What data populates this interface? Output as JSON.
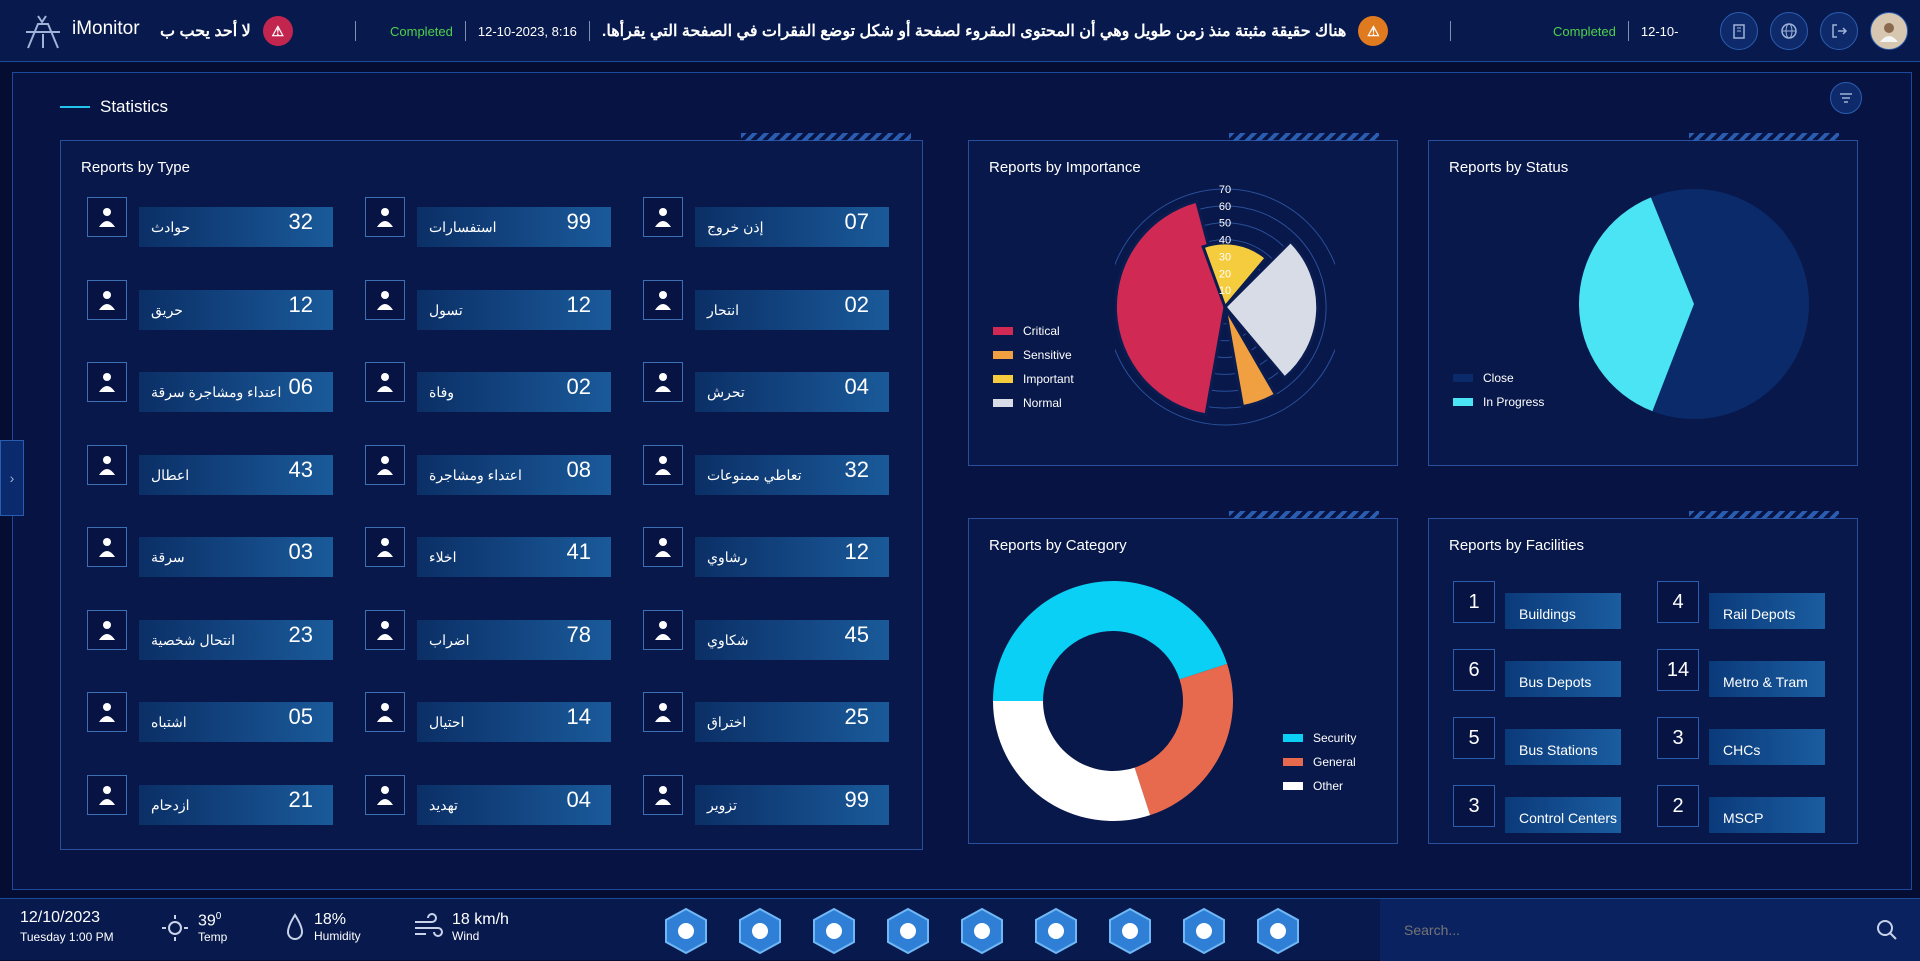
{
  "app": {
    "title": "iMonitor"
  },
  "ticker": [
    {
      "msg": "لا أحد يحب ب",
      "badge_color": "#c2264e"
    },
    {
      "status": "Completed",
      "datetime": "12-10-2023, 8:16",
      "msg": "هناك حقيقة مثبتة منذ زمن طويل وهي أن المحتوى المقروء لصفحة أو شكل توضع الفقرات في الصفحة التي يقرأها.",
      "badge_color": "#e07a1f"
    },
    {
      "status": "Completed",
      "datetime": "12-10-"
    }
  ],
  "top_icons": [
    "building-icon",
    "globe-icon",
    "logout-icon",
    "user-avatar-icon"
  ],
  "stats": {
    "title": "Statistics"
  },
  "reports_by_type": {
    "title": "Reports by Type",
    "items": [
      {
        "label": "حوادث",
        "value": "32",
        "icon": "car-accident-icon"
      },
      {
        "label": "استفسارات",
        "value": "99",
        "icon": "inquiry-icon"
      },
      {
        "label": "إذن خروج",
        "value": "07",
        "icon": "exit-permit-icon"
      },
      {
        "label": "حريق",
        "value": "12",
        "icon": "fire-icon"
      },
      {
        "label": "تسول",
        "value": "12",
        "icon": "begging-icon"
      },
      {
        "label": "انتحار",
        "value": "02",
        "icon": "suicide-icon"
      },
      {
        "label": "اعتداء ومشاجرة سرقة",
        "value": "06",
        "icon": "assault-icon"
      },
      {
        "label": "وفاة",
        "value": "02",
        "icon": "grave-icon"
      },
      {
        "label": "تحرش",
        "value": "04",
        "icon": "harassment-icon"
      },
      {
        "label": "اعطال",
        "value": "43",
        "icon": "breakdown-icon"
      },
      {
        "label": "اعتداء ومشاجرة",
        "value": "08",
        "icon": "fight-icon"
      },
      {
        "label": "تعاطي ممنوعات",
        "value": "32",
        "icon": "drugs-icon"
      },
      {
        "label": "سرقة",
        "value": "03",
        "icon": "theft-icon"
      },
      {
        "label": "اخلاء",
        "value": "41",
        "icon": "evacuation-icon"
      },
      {
        "label": "رشاوي",
        "value": "12",
        "icon": "bribery-icon"
      },
      {
        "label": "انتحال شخصية",
        "value": "23",
        "icon": "id-badge-icon"
      },
      {
        "label": "اضراب",
        "value": "78",
        "icon": "strike-icon"
      },
      {
        "label": "شكاوي",
        "value": "45",
        "icon": "complaint-icon"
      },
      {
        "label": "اشتباه",
        "value": "05",
        "icon": "suspect-icon"
      },
      {
        "label": "احتيال",
        "value": "14",
        "icon": "fraud-icon"
      },
      {
        "label": "اختراق",
        "value": "25",
        "icon": "hacking-icon"
      },
      {
        "label": "ازدحام",
        "value": "21",
        "icon": "traffic-jam-icon"
      },
      {
        "label": "تهديد",
        "value": "04",
        "icon": "threat-icon"
      },
      {
        "label": "تزوير",
        "value": "99",
        "icon": "forgery-icon"
      }
    ]
  },
  "reports_by_importance": {
    "title": "Reports by Importance",
    "ticks": [
      "10",
      "20",
      "30",
      "40",
      "50",
      "60",
      "70"
    ],
    "legend": [
      {
        "name": "Critical",
        "color": "#d02a54"
      },
      {
        "name": "Sensitive",
        "color": "#f0a040"
      },
      {
        "name": "Important",
        "color": "#f5cc3d"
      },
      {
        "name": "Normal",
        "color": "#d8dce6"
      }
    ]
  },
  "reports_by_status": {
    "title": "Reports by Status",
    "legend": [
      {
        "name": "Close",
        "color": "#0b2a6a"
      },
      {
        "name": "In Progress",
        "color": "#4ae4f5"
      }
    ]
  },
  "reports_by_category": {
    "title": "Reports by Category",
    "legend": [
      {
        "name": "Security",
        "color": "#0ad0f5"
      },
      {
        "name": "General",
        "color": "#e86a4e"
      },
      {
        "name": "Other",
        "color": "#ffffff"
      }
    ]
  },
  "reports_by_facilities": {
    "title": "Reports by Facilities",
    "items": [
      {
        "num": "1",
        "label": "Buildings"
      },
      {
        "num": "4",
        "label": "Rail Depots"
      },
      {
        "num": "6",
        "label": "Bus Depots"
      },
      {
        "num": "14",
        "label": "Metro & Tram"
      },
      {
        "num": "5",
        "label": "Bus Stations"
      },
      {
        "num": "3",
        "label": "CHCs"
      },
      {
        "num": "3",
        "label": "Control Centers"
      },
      {
        "num": "2",
        "label": "MSCP"
      }
    ]
  },
  "chart_data": [
    {
      "type": "radial",
      "title": "Reports by Importance",
      "series": [
        {
          "name": "Critical",
          "value": 65
        },
        {
          "name": "Sensitive",
          "value": 60
        },
        {
          "name": "Important",
          "value": 38
        },
        {
          "name": "Normal",
          "value": 55
        }
      ],
      "ylim": [
        0,
        70
      ]
    },
    {
      "type": "pie",
      "title": "Reports by Status",
      "series": [
        {
          "name": "Close",
          "value": 62
        },
        {
          "name": "In Progress",
          "value": 38
        }
      ]
    },
    {
      "type": "pie",
      "title": "Reports by Category",
      "series": [
        {
          "name": "Security",
          "value": 45
        },
        {
          "name": "General",
          "value": 25
        },
        {
          "name": "Other",
          "value": 30
        }
      ]
    }
  ],
  "footer": {
    "date": "12/10/2023",
    "datetime_sub": "Tuesday 1:00 PM",
    "temp": {
      "value": "39",
      "unit": "0",
      "label": "Temp"
    },
    "humidity": {
      "value": "18%",
      "label": "Humidity"
    },
    "wind": {
      "value": "18 km/h",
      "label": "Wind"
    },
    "nav": [
      "alert-icon",
      "tower-icon",
      "buildings-icon",
      "cctv-icon",
      "officer-icon",
      "taxi-icon",
      "bus-icon",
      "tram-icon",
      "boat-icon"
    ],
    "search_placeholder": "Search..."
  }
}
